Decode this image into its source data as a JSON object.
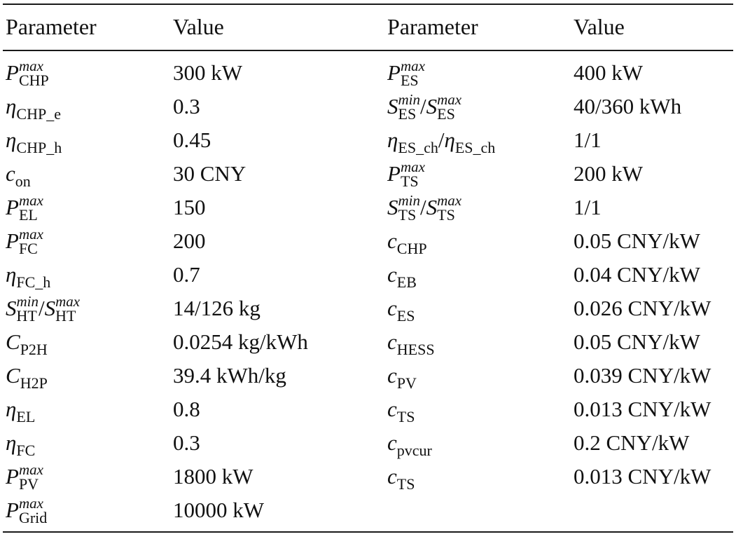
{
  "header": {
    "col1": "Parameter",
    "col2": "Value",
    "col3": "Parameter",
    "col4": "Value"
  },
  "left_rows": [
    {
      "base": "P",
      "sub": "CHP",
      "sup": "max",
      "value": "300 kW"
    },
    {
      "base": "η",
      "sub": "CHP_e",
      "value": "0.3"
    },
    {
      "base": "η",
      "sub": "CHP_h",
      "value": "0.45"
    },
    {
      "base": "c",
      "sub": "on",
      "value": "30 CNY"
    },
    {
      "base": "P",
      "sub": "EL",
      "sup": "max",
      "value": "150"
    },
    {
      "base": "P",
      "sub": "FC",
      "sup": "max",
      "value": "200"
    },
    {
      "base": "η",
      "sub": "FC_h",
      "value": "0.7"
    },
    {
      "base": "S",
      "sub": "HT",
      "sup": "min",
      "base2": "S",
      "sub2": "HT",
      "sup2": "max",
      "value": "14/126 kg"
    },
    {
      "base": "C",
      "sub": "P2H",
      "value": "0.0254 kg/kWh"
    },
    {
      "base": "C",
      "sub": "H2P",
      "value": "39.4 kWh/kg"
    },
    {
      "base": "η",
      "sub": "EL",
      "value": "0.8"
    },
    {
      "base": "η",
      "sub": "FC",
      "value": "0.3"
    },
    {
      "base": "P",
      "sub": "PV",
      "sup": "max",
      "value": "1800 kW"
    },
    {
      "base": "P",
      "sub": "Grid",
      "sup": "max",
      "value": "10000 kW"
    }
  ],
  "right_rows": [
    {
      "base": "P",
      "sub": "ES",
      "sup": "max",
      "value": "400 kW"
    },
    {
      "base": "S",
      "sub": "ES",
      "sup": "min",
      "base2": "S",
      "sub2": "ES",
      "sup2": "max",
      "value": "40/360 kWh"
    },
    {
      "base": "η",
      "sub": "ES_ch",
      "base2": "η",
      "sub2": "ES_ch",
      "value": "1/1"
    },
    {
      "base": "P",
      "sub": "TS",
      "sup": "max",
      "value": "200 kW"
    },
    {
      "base": "S",
      "sub": "TS",
      "sup": "min",
      "base2": "S",
      "sub2": "TS",
      "sup2": "max",
      "value": "1/1"
    },
    {
      "base": "c",
      "sub": "CHP",
      "value": "0.05 CNY/kW"
    },
    {
      "base": "c",
      "sub": "EB",
      "value": "0.04 CNY/kW"
    },
    {
      "base": "c",
      "sub": "ES",
      "value": "0.026 CNY/kW"
    },
    {
      "base": "c",
      "sub": "HESS",
      "value": "0.05 CNY/kW"
    },
    {
      "base": "c",
      "sub": "PV",
      "value": "0.039 CNY/kW"
    },
    {
      "base": "c",
      "sub": "TS",
      "value": "0.013 CNY/kW"
    },
    {
      "base": "c",
      "sub": "pvcur",
      "value": "0.2 CNY/kW"
    },
    {
      "base": "c",
      "sub": "TS",
      "value": "0.013 CNY/kW"
    }
  ]
}
